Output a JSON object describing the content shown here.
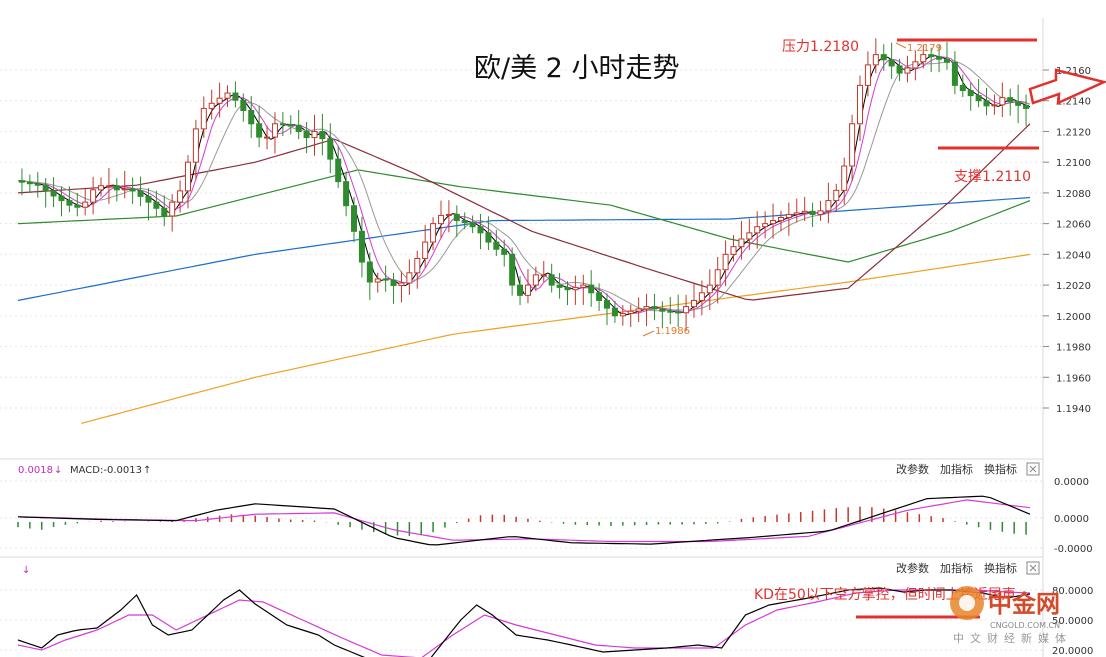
{
  "chart_data": {
    "type": "candlestick",
    "title": "欧/美 2 小时走势",
    "annotations": {
      "resistance": "压力1.2180",
      "support": "支撑1.2110",
      "high_mark": "1.2179",
      "low_mark": "1.1986",
      "kd_note": "KD在50以下空方掌控，但时间上接近尾声"
    },
    "levels": {
      "resistance": 1.218,
      "support": 1.211
    },
    "y_axis": {
      "ticks": [
        "1.2160",
        "1.2140",
        "1.2120",
        "1.2100",
        "1.2080",
        "1.2060",
        "1.2040",
        "1.2020",
        "1.2000",
        "1.1980",
        "1.1960",
        "1.1940"
      ],
      "range": [
        1.193,
        1.2185
      ]
    },
    "macd": {
      "label_left": "0.0018",
      "label_macd": "MACD:-0.0013",
      "ticks": [
        "0.0000",
        "0.0000",
        "-0.0000"
      ]
    },
    "kd": {
      "ticks": [
        "80.0000",
        "50.0000",
        "20.0000"
      ]
    },
    "controls": [
      "改参数",
      "加指标",
      "换指标"
    ],
    "close_points": [
      [
        0,
        1.2088
      ],
      [
        6,
        1.2085
      ],
      [
        10,
        1.2078
      ],
      [
        14,
        1.2072
      ],
      [
        17,
        1.207
      ],
      [
        20,
        1.2082
      ],
      [
        23,
        1.2086
      ],
      [
        26,
        1.2082
      ],
      [
        29,
        1.2083
      ],
      [
        33,
        1.2076
      ],
      [
        36,
        1.207
      ],
      [
        38,
        1.2065
      ],
      [
        40,
        1.2074
      ],
      [
        43,
        1.2085
      ],
      [
        45,
        1.2115
      ],
      [
        48,
        1.2135
      ],
      [
        51,
        1.214
      ],
      [
        54,
        1.2145
      ],
      [
        57,
        1.2138
      ],
      [
        60,
        1.2125
      ],
      [
        63,
        1.2112
      ],
      [
        66,
        1.2125
      ],
      [
        70,
        1.2124
      ],
      [
        74,
        1.2116
      ],
      [
        77,
        1.2122
      ],
      [
        80,
        1.2102
      ],
      [
        83,
        1.208
      ],
      [
        86,
        1.2055
      ],
      [
        88,
        1.2035
      ],
      [
        90,
        1.2022
      ],
      [
        93,
        1.2025
      ],
      [
        97,
        1.2018
      ],
      [
        100,
        1.2028
      ],
      [
        103,
        1.2042
      ],
      [
        106,
        1.206
      ],
      [
        109,
        1.2068
      ],
      [
        112,
        1.2062
      ],
      [
        115,
        1.206
      ],
      [
        118,
        1.2054
      ],
      [
        121,
        1.2045
      ],
      [
        124,
        1.204
      ],
      [
        127,
        1.201
      ],
      [
        130,
        1.202
      ],
      [
        133,
        1.203
      ],
      [
        136,
        1.202
      ],
      [
        140,
        1.2017
      ],
      [
        144,
        1.202
      ],
      [
        148,
        1.201
      ],
      [
        152,
        1.2
      ],
      [
        156,
        1.2003
      ],
      [
        160,
        1.2006
      ],
      [
        164,
        1.2003
      ],
      [
        168,
        1.2002
      ],
      [
        172,
        1.201
      ],
      [
        176,
        1.202
      ],
      [
        180,
        1.204
      ],
      [
        184,
        1.205
      ],
      [
        188,
        1.2058
      ],
      [
        192,
        1.2062
      ],
      [
        196,
        1.2066
      ],
      [
        200,
        1.2068
      ],
      [
        203,
        1.2065
      ],
      [
        206,
        1.2075
      ],
      [
        209,
        1.2085
      ],
      [
        211,
        1.211
      ],
      [
        213,
        1.214
      ],
      [
        215,
        1.216
      ],
      [
        218,
        1.217
      ],
      [
        221,
        1.2165
      ],
      [
        224,
        1.2158
      ],
      [
        227,
        1.2163
      ],
      [
        230,
        1.217
      ],
      [
        233,
        1.2168
      ],
      [
        236,
        1.2165
      ],
      [
        238,
        1.215
      ],
      [
        241,
        1.2145
      ],
      [
        244,
        1.214
      ],
      [
        247,
        1.2135
      ],
      [
        250,
        1.2142
      ],
      [
        253,
        1.2138
      ],
      [
        256,
        1.2135
      ]
    ],
    "ma_lines": [
      {
        "color": "#1a6fc9",
        "points": [
          [
            0,
            1.201
          ],
          [
            60,
            1.204
          ],
          [
            120,
            1.2062
          ],
          [
            180,
            1.2063
          ],
          [
            256,
            1.2077
          ]
        ]
      },
      {
        "color": "#f0a020",
        "points": [
          [
            16,
            1.193
          ],
          [
            60,
            1.196
          ],
          [
            110,
            1.1988
          ],
          [
            160,
            1.2005
          ],
          [
            210,
            1.2022
          ],
          [
            256,
            1.204
          ]
        ]
      },
      {
        "color": "#2e8b2e",
        "points": [
          [
            0,
            1.206
          ],
          [
            40,
            1.2065
          ],
          [
            86,
            1.2095
          ],
          [
            112,
            1.2084
          ],
          [
            150,
            1.2072
          ],
          [
            180,
            1.205
          ],
          [
            210,
            1.2035
          ],
          [
            236,
            1.2055
          ],
          [
            256,
            1.2075
          ]
        ]
      },
      {
        "color": "#8b2c3a",
        "points": [
          [
            0,
            1.208
          ],
          [
            30,
            1.2085
          ],
          [
            60,
            1.21
          ],
          [
            80,
            1.2115
          ],
          [
            100,
            1.2093
          ],
          [
            130,
            1.2055
          ],
          [
            160,
            1.203
          ],
          [
            185,
            1.201
          ],
          [
            210,
            1.2018
          ],
          [
            236,
            1.2075
          ],
          [
            256,
            1.2125
          ]
        ]
      }
    ],
    "macd_dif": [
      [
        0,
        0.2
      ],
      [
        20,
        0.1
      ],
      [
        40,
        0.05
      ],
      [
        50,
        0.45
      ],
      [
        60,
        0.7
      ],
      [
        80,
        0.5
      ],
      [
        95,
        -0.6
      ],
      [
        105,
        -0.9
      ],
      [
        125,
        -0.55
      ],
      [
        140,
        -0.8
      ],
      [
        160,
        -0.85
      ],
      [
        185,
        -0.6
      ],
      [
        205,
        -0.35
      ],
      [
        230,
        0.9
      ],
      [
        245,
        1.0
      ],
      [
        256,
        0.3
      ]
    ],
    "macd_dea": [
      [
        0,
        0.2
      ],
      [
        25,
        0.1
      ],
      [
        45,
        0.05
      ],
      [
        60,
        0.3
      ],
      [
        80,
        0.35
      ],
      [
        95,
        -0.3
      ],
      [
        110,
        -0.7
      ],
      [
        130,
        -0.65
      ],
      [
        150,
        -0.75
      ],
      [
        175,
        -0.75
      ],
      [
        200,
        -0.55
      ],
      [
        225,
        0.45
      ],
      [
        240,
        0.85
      ],
      [
        256,
        0.55
      ]
    ],
    "macd_hist": [
      [
        0,
        -0.2
      ],
      [
        6,
        -0.3
      ],
      [
        10,
        -0.15
      ],
      [
        20,
        0.05
      ],
      [
        30,
        0.0
      ],
      [
        40,
        0.05
      ],
      [
        48,
        0.2
      ],
      [
        54,
        0.3
      ],
      [
        60,
        0.25
      ],
      [
        68,
        0.1
      ],
      [
        76,
        0.05
      ],
      [
        84,
        -0.2
      ],
      [
        92,
        -0.45
      ],
      [
        98,
        -0.55
      ],
      [
        104,
        -0.45
      ],
      [
        110,
        -0.1
      ],
      [
        116,
        0.25
      ],
      [
        122,
        0.3
      ],
      [
        128,
        0.15
      ],
      [
        134,
        0.0
      ],
      [
        140,
        -0.1
      ],
      [
        150,
        -0.15
      ],
      [
        162,
        -0.1
      ],
      [
        170,
        -0.1
      ],
      [
        178,
        -0.05
      ],
      [
        184,
        0.15
      ],
      [
        190,
        0.25
      ],
      [
        196,
        0.35
      ],
      [
        202,
        0.45
      ],
      [
        208,
        0.55
      ],
      [
        214,
        0.6
      ],
      [
        220,
        0.5
      ],
      [
        228,
        0.3
      ],
      [
        234,
        0.15
      ],
      [
        240,
        -0.1
      ],
      [
        246,
        -0.3
      ],
      [
        252,
        -0.45
      ],
      [
        256,
        -0.5
      ]
    ],
    "kd_k": [
      [
        0,
        30
      ],
      [
        6,
        22
      ],
      [
        10,
        35
      ],
      [
        15,
        40
      ],
      [
        20,
        42
      ],
      [
        26,
        60
      ],
      [
        30,
        75
      ],
      [
        34,
        45
      ],
      [
        38,
        35
      ],
      [
        44,
        40
      ],
      [
        52,
        70
      ],
      [
        56,
        80
      ],
      [
        60,
        66
      ],
      [
        68,
        45
      ],
      [
        76,
        35
      ],
      [
        80,
        25
      ],
      [
        88,
        12
      ],
      [
        96,
        8
      ],
      [
        104,
        10
      ],
      [
        112,
        50
      ],
      [
        116,
        65
      ],
      [
        120,
        55
      ],
      [
        126,
        35
      ],
      [
        134,
        30
      ],
      [
        140,
        25
      ],
      [
        148,
        18
      ],
      [
        156,
        20
      ],
      [
        164,
        22
      ],
      [
        172,
        25
      ],
      [
        178,
        22
      ],
      [
        184,
        55
      ],
      [
        190,
        65
      ],
      [
        200,
        72
      ],
      [
        210,
        80
      ],
      [
        218,
        82
      ],
      [
        224,
        78
      ],
      [
        230,
        80
      ],
      [
        236,
        80
      ],
      [
        244,
        77
      ],
      [
        250,
        72
      ],
      [
        256,
        76
      ]
    ],
    "kd_d": [
      [
        0,
        25
      ],
      [
        6,
        20
      ],
      [
        12,
        30
      ],
      [
        20,
        40
      ],
      [
        28,
        55
      ],
      [
        34,
        55
      ],
      [
        40,
        40
      ],
      [
        48,
        55
      ],
      [
        56,
        70
      ],
      [
        62,
        68
      ],
      [
        72,
        50
      ],
      [
        82,
        32
      ],
      [
        92,
        15
      ],
      [
        102,
        12
      ],
      [
        110,
        35
      ],
      [
        118,
        55
      ],
      [
        126,
        45
      ],
      [
        136,
        35
      ],
      [
        146,
        25
      ],
      [
        156,
        22
      ],
      [
        166,
        22
      ],
      [
        176,
        22
      ],
      [
        184,
        45
      ],
      [
        192,
        60
      ],
      [
        202,
        68
      ],
      [
        212,
        77
      ],
      [
        222,
        80
      ],
      [
        232,
        80
      ],
      [
        242,
        80
      ],
      [
        250,
        78
      ],
      [
        256,
        77
      ]
    ]
  },
  "watermark": {
    "name": "中金网",
    "site": "CNGOLD.COM.CN",
    "slogan": "中文财经新媒体"
  }
}
